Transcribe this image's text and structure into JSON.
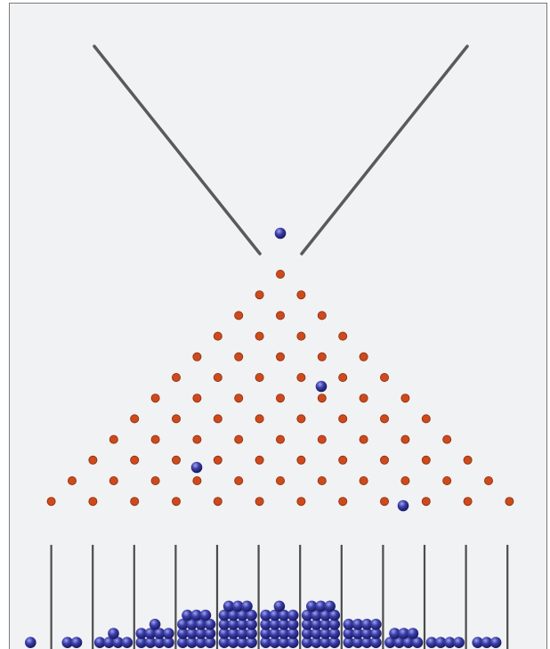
{
  "figure": {
    "name": "Galton board",
    "colors": {
      "background": "#f1f2f4",
      "frame": "#7a7a7a",
      "funnel": "#5a5a5a",
      "peg": "#cc4a1c",
      "peg_edge": "#8e2c0c",
      "divider": "#4c4c4c",
      "ball_light": "#9fa4ef",
      "ball_mid": "#3b3ea8",
      "ball_dark": "#15165a"
    },
    "peg_rows": 12,
    "bins": 13,
    "bin_ball_counts": [
      1,
      2,
      5,
      9,
      15,
      19,
      17,
      19,
      12,
      7,
      4,
      3,
      0
    ],
    "falling_balls": 4
  }
}
